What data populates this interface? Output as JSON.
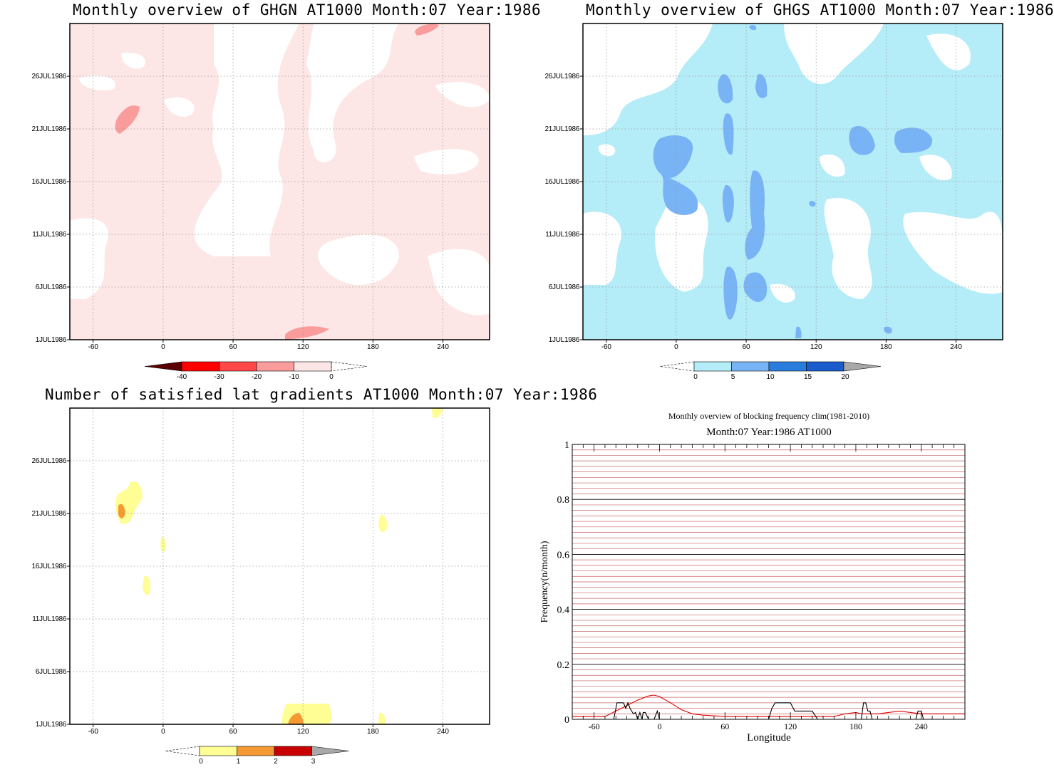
{
  "panels": {
    "ghgn": {
      "title": "Monthly overview of GHGN AT1000 Month:07 Year:1986"
    },
    "ghgs": {
      "title": "Monthly overview of GHGS AT1000 Month:07 Year:1986"
    },
    "lat": {
      "title": "Number of satisfied lat gradients AT1000 Month:07 Year:1986"
    },
    "freq": {
      "title": "Monthly overview of blocking frequency clim(1981-2010)",
      "subtitle": "Month:07 Year:1986  AT1000"
    }
  },
  "colors": {
    "light_pink": "#fde6e6",
    "pink": "#fa9c9c",
    "light_cyan": "#b4ecf8",
    "mid_blue": "#78b4f5",
    "dark_blue": "#2a7ddc",
    "light_yellow": "#fefe94",
    "orange": "#f59a32",
    "dark_red": "#c80000",
    "grey": "#a8a8a8",
    "freq_grid": "#c86464",
    "clim_line": "#e00000",
    "obs_line": "#000000"
  },
  "chart_data": [
    {
      "type": "heatmap",
      "title": "Monthly overview of GHGN AT1000 Month:07 Year:1986",
      "x_ticks": [
        "-60",
        "0",
        "60",
        "120",
        "180",
        "240"
      ],
      "y_ticks": [
        "1JUL1986",
        "6JUL1986",
        "11JUL1986",
        "16JUL1986",
        "21JUL1986",
        "26JUL1986"
      ],
      "xlim": [
        -80,
        280
      ],
      "ylim": [
        "1JUL1986",
        "31JUL1986"
      ],
      "grid": true,
      "colorbar": {
        "labels": [
          "-40",
          "-30",
          "-20",
          "-10",
          "0"
        ],
        "colors": [
          "#5a0000",
          "#ff0000",
          "#ff4848",
          "#fa9c9c",
          "#fde6e6"
        ]
      }
    },
    {
      "type": "heatmap",
      "title": "Monthly overview of GHGS AT1000 Month:07 Year:1986",
      "x_ticks": [
        "-60",
        "0",
        "60",
        "120",
        "180",
        "240"
      ],
      "y_ticks": [
        "1JUL1986",
        "6JUL1986",
        "11JUL1986",
        "16JUL1986",
        "21JUL1986",
        "26JUL1986"
      ],
      "xlim": [
        -80,
        280
      ],
      "ylim": [
        "1JUL1986",
        "31JUL1986"
      ],
      "grid": true,
      "colorbar": {
        "labels": [
          "0",
          "5",
          "10",
          "15",
          "20"
        ],
        "colors": [
          "#b4ecf8",
          "#78b4f5",
          "#2a7ddc",
          "#1a5ccc",
          "#a8a8a8"
        ]
      }
    },
    {
      "type": "heatmap",
      "title": "Number of satisfied lat gradients AT1000 Month:07 Year:1986",
      "x_ticks": [
        "-60",
        "0",
        "60",
        "120",
        "180",
        "240"
      ],
      "y_ticks": [
        "1JUL1986",
        "6JUL1986",
        "11JUL1986",
        "16JUL1986",
        "21JUL1986",
        "26JUL1986"
      ],
      "xlim": [
        -80,
        280
      ],
      "ylim": [
        "1JUL1986",
        "31JUL1986"
      ],
      "grid": true,
      "colorbar": {
        "labels": [
          "0",
          "1",
          "2",
          "3"
        ],
        "colors": [
          "#fefe94",
          "#f59a32",
          "#c80000",
          "#a8a8a8"
        ]
      }
    },
    {
      "type": "line",
      "title": "Monthly overview of blocking frequency clim(1981-2010)",
      "subtitle": "Month:07 Year:1986  AT1000",
      "xlabel": "Longitude",
      "ylabel": "Frequency(n/month)",
      "x_ticks": [
        "-60",
        "0",
        "60",
        "120",
        "180",
        "240"
      ],
      "y_ticks": [
        "0",
        "0.2",
        "0.4",
        "0.6",
        "0.8",
        "1"
      ],
      "xlim": [
        -80,
        280
      ],
      "ylim": [
        0,
        1
      ],
      "grid": true,
      "series": [
        {
          "color": "#e00000",
          "x": [
            -80,
            -60,
            -50,
            -40,
            -30,
            -20,
            -10,
            -5,
            0,
            10,
            20,
            30,
            40,
            60,
            80,
            100,
            120,
            140,
            160,
            170,
            180,
            185,
            190,
            200,
            210,
            220,
            230,
            240,
            250,
            260,
            280
          ],
          "y": [
            0.01,
            0.01,
            0.01,
            0.03,
            0.05,
            0.07,
            0.085,
            0.088,
            0.083,
            0.06,
            0.035,
            0.02,
            0.015,
            0.01,
            0.01,
            0.01,
            0.01,
            0.01,
            0.01,
            0.02,
            0.025,
            0.02,
            0.02,
            0.02,
            0.025,
            0.03,
            0.025,
            0.02,
            0.02,
            0.02,
            0.02
          ]
        },
        {
          "color": "#000000",
          "x": [
            -80,
            -42,
            -39,
            -33,
            -31,
            -29,
            -27,
            -24,
            -22,
            -20,
            -18,
            -16,
            -15,
            -13,
            -10,
            -8,
            -5,
            -2,
            0,
            2,
            5,
            100,
            103,
            106,
            120,
            124,
            130,
            140,
            145,
            150,
            185,
            187,
            189,
            191,
            193,
            195,
            235,
            237,
            240,
            242,
            245,
            280
          ],
          "y": [
            0,
            0,
            0.06,
            0.06,
            0.04,
            0.06,
            0.04,
            0.02,
            0.025,
            0,
            0.025,
            0,
            0.025,
            0.025,
            0,
            0,
            0,
            0.03,
            0,
            0,
            0,
            0,
            0.04,
            0.06,
            0.06,
            0.03,
            0.03,
            0.03,
            0,
            0,
            0,
            0.06,
            0.06,
            0.03,
            0.03,
            0,
            0,
            0.03,
            0.03,
            0,
            0,
            0
          ]
        }
      ]
    }
  ]
}
